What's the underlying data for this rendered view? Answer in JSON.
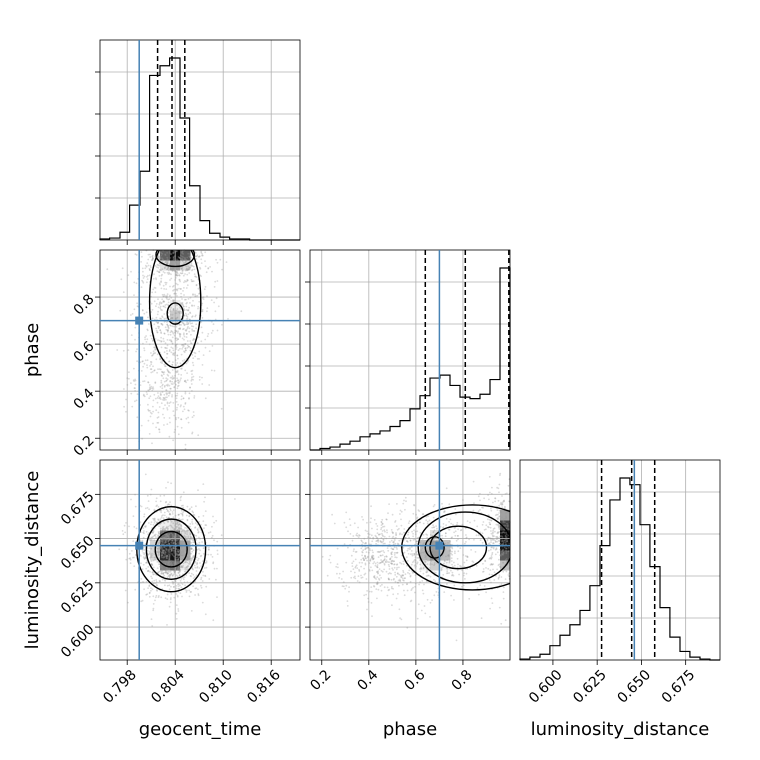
{
  "chart_data": {
    "type": "corner",
    "parameters": [
      "geocent_time",
      "phase",
      "luminosity_distance"
    ],
    "truth": {
      "geocent_time": 0.7995,
      "phase": 0.7,
      "luminosity_distance": 0.646
    },
    "ranges": {
      "geocent_time": [
        0.7946,
        0.8196
      ],
      "phase": [
        0.15,
        1.0
      ],
      "luminosity_distance": [
        0.5814,
        0.6944
      ]
    },
    "ticks": {
      "geocent_time": [
        0.798,
        0.804,
        0.81,
        0.816
      ],
      "phase": [
        0.2,
        0.4,
        0.6,
        0.8
      ],
      "luminosity_distance": [
        0.6,
        0.625,
        0.65,
        0.675
      ]
    },
    "tick_labels": {
      "geocent_time": [
        "0.798",
        "0.804",
        "0.810",
        "0.816"
      ],
      "phase": [
        "0.2",
        "0.4",
        "0.6",
        "0.8"
      ],
      "luminosity_distance": [
        "0.600",
        "0.625",
        "0.650",
        "0.675"
      ]
    },
    "quantiles": {
      "geocent_time": [
        0.8018,
        0.8036,
        0.8052
      ],
      "phase": [
        0.64,
        0.81,
        0.995
      ],
      "luminosity_distance": [
        0.6275,
        0.6445,
        0.6575
      ]
    },
    "histograms": {
      "geocent_time": {
        "edges": [
          0.7946,
          0.7958,
          0.7971,
          0.7983,
          0.7996,
          0.8008,
          0.8021,
          0.8033,
          0.8046,
          0.8058,
          0.8071,
          0.8083,
          0.8096,
          0.8108,
          0.8121,
          0.8133,
          0.8146,
          0.8158,
          0.8171,
          0.8183,
          0.8196
        ],
        "counts": [
          1,
          2,
          8,
          36,
          71,
          170,
          180,
          188,
          126,
          56,
          20,
          7,
          3,
          1,
          1,
          0,
          0,
          0,
          0,
          0
        ]
      },
      "phase": {
        "edges": [
          0.15,
          0.1925,
          0.235,
          0.2775,
          0.32,
          0.3625,
          0.405,
          0.4475,
          0.49,
          0.5325,
          0.575,
          0.6175,
          0.66,
          0.7025,
          0.745,
          0.7875,
          0.83,
          0.8725,
          0.915,
          0.9575,
          1.0
        ],
        "counts": [
          0,
          1,
          2,
          4,
          6,
          9,
          11,
          13,
          16,
          20,
          28,
          37,
          49,
          51,
          44,
          36,
          35,
          38,
          48,
          124
        ]
      },
      "luminosity_distance": {
        "edges": [
          0.5814,
          0.587,
          0.5927,
          0.5983,
          0.604,
          0.6096,
          0.6153,
          0.6209,
          0.6266,
          0.6322,
          0.6379,
          0.6435,
          0.6492,
          0.6548,
          0.6605,
          0.6661,
          0.6718,
          0.6774,
          0.6831,
          0.6887,
          0.6944
        ],
        "counts": [
          1,
          3,
          6,
          15,
          26,
          37,
          52,
          78,
          120,
          168,
          191,
          184,
          142,
          98,
          55,
          24,
          9,
          3,
          1,
          0
        ]
      }
    },
    "density_peaks": {
      "phase_vs_geocent_time": [
        {
          "x": 0.804,
          "y": 0.97,
          "level": "max"
        },
        {
          "x": 0.804,
          "y": 0.73,
          "level": "secondary"
        },
        {
          "x": 0.802,
          "y": 0.43,
          "level": "tail"
        }
      ],
      "luminosity_distance_vs_geocent_time": [
        {
          "x": 0.8035,
          "y": 0.644,
          "level": "max"
        }
      ],
      "luminosity_distance_vs_phase": [
        {
          "x": 0.68,
          "y": 0.643,
          "level": "secondary"
        },
        {
          "x": 0.99,
          "y": 0.65,
          "level": "max"
        }
      ]
    },
    "xlabel_bottom": [
      "geocent_time",
      "phase",
      "luminosity_distance"
    ],
    "ylabel_left": [
      "phase",
      "luminosity_distance"
    ],
    "grid": true,
    "colors": {
      "truth": "#4682b4",
      "line": "#000000",
      "scatter": "#999999",
      "grid": "#b0b0b0"
    }
  }
}
